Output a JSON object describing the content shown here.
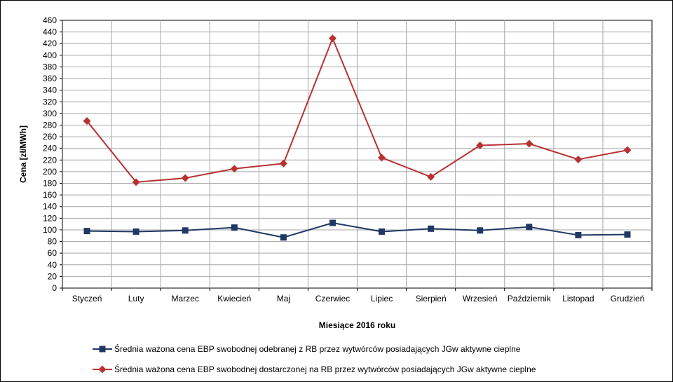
{
  "chart_data": {
    "type": "line",
    "title": "",
    "xlabel": "Miesiące 2016  roku",
    "ylabel": "Cena [zł/MWh]",
    "ylim": [
      0,
      460
    ],
    "ytick_step": 20,
    "grid": true,
    "legend_position": "bottom",
    "categories": [
      "Styczeń",
      "Luty",
      "Marzec",
      "Kwiecień",
      "Maj",
      "Czerwiec",
      "Lipiec",
      "Sierpień",
      "Wrzesień",
      "Październik",
      "Listopad",
      "Grudzień"
    ],
    "series": [
      {
        "name": "Średnia ważona cena EBP swobodnej odebranej z RB przez wytwórców posiadających JGw aktywne cieplne",
        "color": "#1f3864",
        "marker": "square",
        "values": [
          98,
          97,
          99,
          104,
          87,
          112,
          97,
          102,
          99,
          105,
          91,
          92
        ]
      },
      {
        "name": "Średnia ważona cena EBP swobodnej dostarczonej na RB przez wytwórców posiadających JGw aktywne cieplne",
        "color": "#b83232",
        "marker": "diamond",
        "values": [
          287,
          182,
          189,
          205,
          214,
          429,
          224,
          191,
          245,
          248,
          221,
          237
        ]
      }
    ]
  }
}
